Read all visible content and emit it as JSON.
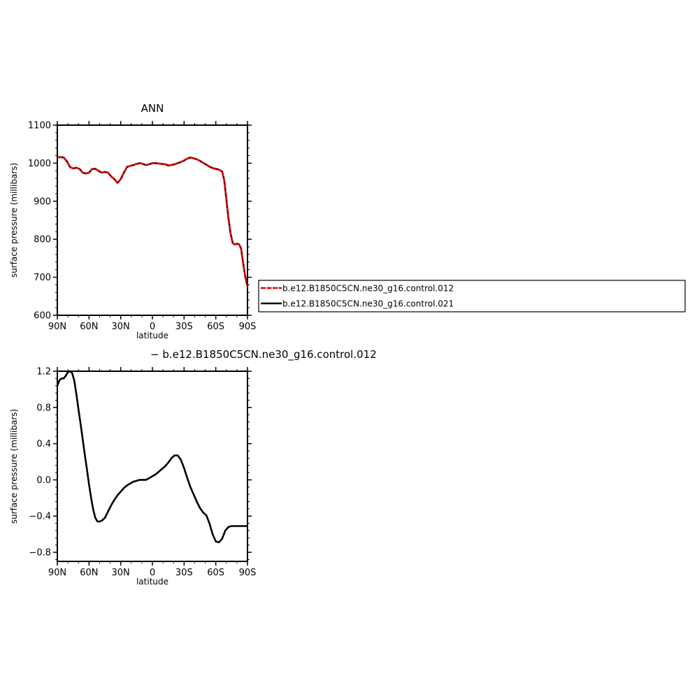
{
  "chart_data": [
    {
      "type": "line",
      "title": "ANN",
      "xlabel": "latitude",
      "ylabel": "surface pressure (millibars)",
      "xlim": [
        90,
        -90
      ],
      "ylim": [
        600,
        1100
      ],
      "x_ticks": [
        90,
        60,
        30,
        0,
        -30,
        -60,
        -90
      ],
      "x_tick_labels": [
        "90N",
        "60N",
        "30N",
        "0",
        "30S",
        "60S",
        "90S"
      ],
      "y_ticks": [
        600,
        700,
        800,
        900,
        1000,
        1100
      ],
      "y_tick_labels": [
        "600",
        "700",
        "800",
        "900",
        "1000",
        "1100"
      ],
      "legend_position": "right",
      "series": [
        {
          "name": "b.e12.B1850C5CN.ne30_g16.control.012",
          "color": "#dd0000",
          "dash": "dashed",
          "x": [
            90,
            87,
            84,
            81,
            78,
            75,
            72,
            69,
            66,
            63,
            60,
            57,
            54,
            51,
            48,
            45,
            42,
            39,
            36,
            33,
            30,
            27,
            24,
            21,
            18,
            15,
            12,
            9,
            6,
            3,
            0,
            -3,
            -6,
            -9,
            -12,
            -15,
            -18,
            -21,
            -24,
            -27,
            -30,
            -33,
            -36,
            -39,
            -42,
            -45,
            -48,
            -51,
            -54,
            -57,
            -60,
            -63,
            -66,
            -68,
            -70,
            -72,
            -74,
            -76,
            -78,
            -80,
            -82,
            -84,
            -86,
            -88,
            -90
          ],
          "y": [
            1015,
            1016,
            1015,
            1005,
            990,
            986,
            988,
            985,
            975,
            973,
            975,
            985,
            985,
            980,
            975,
            977,
            975,
            965,
            958,
            948,
            958,
            975,
            990,
            993,
            995,
            998,
            1000,
            998,
            995,
            997,
            1000,
            1000,
            999,
            998,
            997,
            994,
            995,
            997,
            1000,
            1003,
            1007,
            1012,
            1015,
            1013,
            1010,
            1006,
            1001,
            996,
            991,
            987,
            985,
            983,
            978,
            955,
            905,
            855,
            815,
            790,
            786,
            788,
            787,
            775,
            735,
            700,
            676
          ]
        },
        {
          "name": "b.e12.B1850C5CN.ne30_g16.control.021",
          "color": "#000000",
          "dash": "solid",
          "x": [
            90,
            87,
            84,
            81,
            78,
            75,
            72,
            69,
            66,
            63,
            60,
            57,
            54,
            51,
            48,
            45,
            42,
            39,
            36,
            33,
            30,
            27,
            24,
            21,
            18,
            15,
            12,
            9,
            6,
            3,
            0,
            -3,
            -6,
            -9,
            -12,
            -15,
            -18,
            -21,
            -24,
            -27,
            -30,
            -33,
            -36,
            -39,
            -42,
            -45,
            -48,
            -51,
            -54,
            -57,
            -60,
            -63,
            -66,
            -68,
            -70,
            -72,
            -74,
            -76,
            -78,
            -80,
            -82,
            -84,
            -86,
            -88,
            -90
          ],
          "y": [
            1015,
            1016,
            1015,
            1005,
            990,
            986,
            988,
            985,
            975,
            973,
            975,
            985,
            985,
            980,
            975,
            977,
            975,
            965,
            958,
            948,
            958,
            975,
            990,
            993,
            995,
            998,
            1000,
            998,
            995,
            997,
            1000,
            1000,
            999,
            998,
            997,
            994,
            995,
            997,
            1000,
            1003,
            1007,
            1012,
            1015,
            1013,
            1010,
            1006,
            1001,
            996,
            991,
            987,
            985,
            983,
            978,
            955,
            905,
            855,
            815,
            790,
            786,
            788,
            787,
            775,
            735,
            700,
            676
          ]
        }
      ]
    },
    {
      "type": "line",
      "title": "− b.e12.B1850C5CN.ne30_g16.control.012",
      "xlabel": "latitude",
      "ylabel": "surface pressure (millibars)",
      "xlim": [
        90,
        -90
      ],
      "ylim": [
        -0.9,
        1.2
      ],
      "x_ticks": [
        90,
        60,
        30,
        0,
        -30,
        -60,
        -90
      ],
      "x_tick_labels": [
        "90N",
        "60N",
        "30N",
        "0",
        "30S",
        "60S",
        "90S"
      ],
      "y_ticks": [
        -0.8,
        -0.4,
        0.0,
        0.4,
        0.8,
        1.2
      ],
      "y_tick_labels": [
        "−0.8",
        "−0.4",
        "0.0",
        "0.4",
        "0.8",
        "1.2"
      ],
      "series": [
        {
          "name": "",
          "color": "#000000",
          "dash": "solid",
          "x": [
            90,
            88,
            86,
            84,
            82,
            80,
            78,
            76,
            74,
            72,
            70,
            68,
            66,
            64,
            62,
            60,
            58,
            56,
            54,
            52,
            50,
            48,
            45,
            42,
            39,
            36,
            33,
            30,
            27,
            24,
            21,
            18,
            15,
            12,
            9,
            6,
            3,
            0,
            -3,
            -6,
            -9,
            -12,
            -15,
            -18,
            -21,
            -24,
            -27,
            -30,
            -33,
            -36,
            -39,
            -42,
            -45,
            -48,
            -51,
            -54,
            -57,
            -60,
            -63,
            -66,
            -69,
            -72,
            -75,
            -78,
            -81,
            -84,
            -87,
            -90
          ],
          "y": [
            1.04,
            1.1,
            1.12,
            1.12,
            1.15,
            1.19,
            1.2,
            1.18,
            1.1,
            0.95,
            0.78,
            0.62,
            0.45,
            0.28,
            0.12,
            -0.05,
            -0.2,
            -0.33,
            -0.42,
            -0.46,
            -0.46,
            -0.45,
            -0.42,
            -0.35,
            -0.28,
            -0.22,
            -0.17,
            -0.13,
            -0.09,
            -0.06,
            -0.04,
            -0.02,
            -0.01,
            0.0,
            0.0,
            0.0,
            0.02,
            0.04,
            0.06,
            0.09,
            0.12,
            0.15,
            0.19,
            0.24,
            0.27,
            0.27,
            0.22,
            0.13,
            0.02,
            -0.08,
            -0.16,
            -0.24,
            -0.31,
            -0.36,
            -0.39,
            -0.48,
            -0.6,
            -0.68,
            -0.69,
            -0.65,
            -0.56,
            -0.52,
            -0.51,
            -0.51,
            -0.51,
            -0.51,
            -0.51,
            -0.51
          ]
        }
      ]
    }
  ]
}
